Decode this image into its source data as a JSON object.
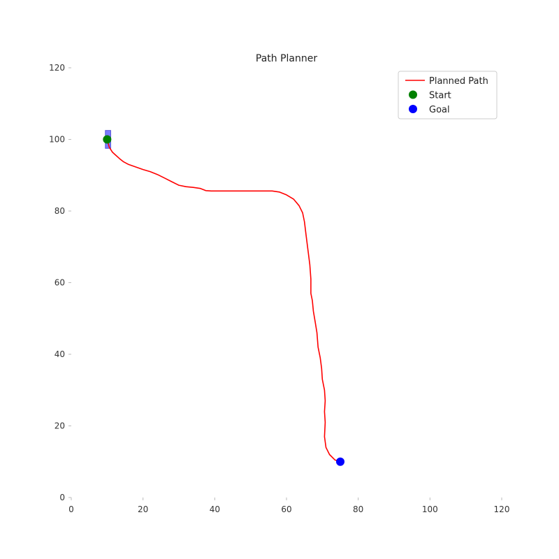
{
  "chart_data": {
    "type": "line",
    "title": "Path Planner",
    "xlabel": "",
    "ylabel": "",
    "xlim": [
      0,
      120
    ],
    "ylim": [
      0,
      120
    ],
    "x_ticks": [
      0,
      20,
      40,
      60,
      80,
      100,
      120
    ],
    "y_ticks": [
      0,
      20,
      40,
      60,
      80,
      100,
      120
    ],
    "grid": false,
    "legend_position": "top-right",
    "series": [
      {
        "name": "Planned Path",
        "type": "line",
        "color": "#ff0000",
        "points": [
          [
            10,
            100
          ],
          [
            10.6,
            97.8
          ],
          [
            11.5,
            96.4
          ],
          [
            12.5,
            95.5
          ],
          [
            13.5,
            94.6
          ],
          [
            14.5,
            93.8
          ],
          [
            16,
            93
          ],
          [
            18,
            92.3
          ],
          [
            20,
            91.6
          ],
          [
            22,
            91
          ],
          [
            24,
            90.2
          ],
          [
            26,
            89.2
          ],
          [
            28,
            88.2
          ],
          [
            30,
            87.2
          ],
          [
            32,
            86.8
          ],
          [
            34,
            86.6
          ],
          [
            36,
            86.3
          ],
          [
            37.5,
            85.7
          ],
          [
            39,
            85.6
          ],
          [
            45,
            85.6
          ],
          [
            52,
            85.6
          ],
          [
            56,
            85.6
          ],
          [
            58,
            85.3
          ],
          [
            60,
            84.5
          ],
          [
            62,
            83.3
          ],
          [
            63.5,
            81.5
          ],
          [
            64.5,
            79.5
          ],
          [
            65,
            77
          ],
          [
            65.5,
            73
          ],
          [
            66,
            69
          ],
          [
            66.5,
            65
          ],
          [
            66.8,
            61
          ],
          [
            66.8,
            57
          ],
          [
            67.2,
            55
          ],
          [
            67.5,
            52
          ],
          [
            68,
            49
          ],
          [
            68.5,
            46
          ],
          [
            68.8,
            42
          ],
          [
            69.4,
            39
          ],
          [
            69.8,
            36
          ],
          [
            70,
            33
          ],
          [
            70.6,
            30
          ],
          [
            70.8,
            27
          ],
          [
            70.6,
            24
          ],
          [
            70.8,
            21
          ],
          [
            70.6,
            17
          ],
          [
            71,
            14
          ],
          [
            72,
            12
          ],
          [
            73.5,
            10.5
          ],
          [
            75,
            10
          ]
        ]
      },
      {
        "name": "Start",
        "type": "scatter",
        "color": "#008000",
        "points": [
          [
            10,
            100
          ]
        ]
      },
      {
        "name": "Goal",
        "type": "scatter",
        "color": "#0000ff",
        "points": [
          [
            75,
            10
          ]
        ]
      }
    ],
    "obstacles": [
      {
        "kind": "rectangle",
        "color": "#7b7bff",
        "edge_color": "#5a5ad6",
        "x_range": [
          9.5,
          11
        ],
        "y_range": [
          97.5,
          102.5
        ]
      }
    ]
  }
}
